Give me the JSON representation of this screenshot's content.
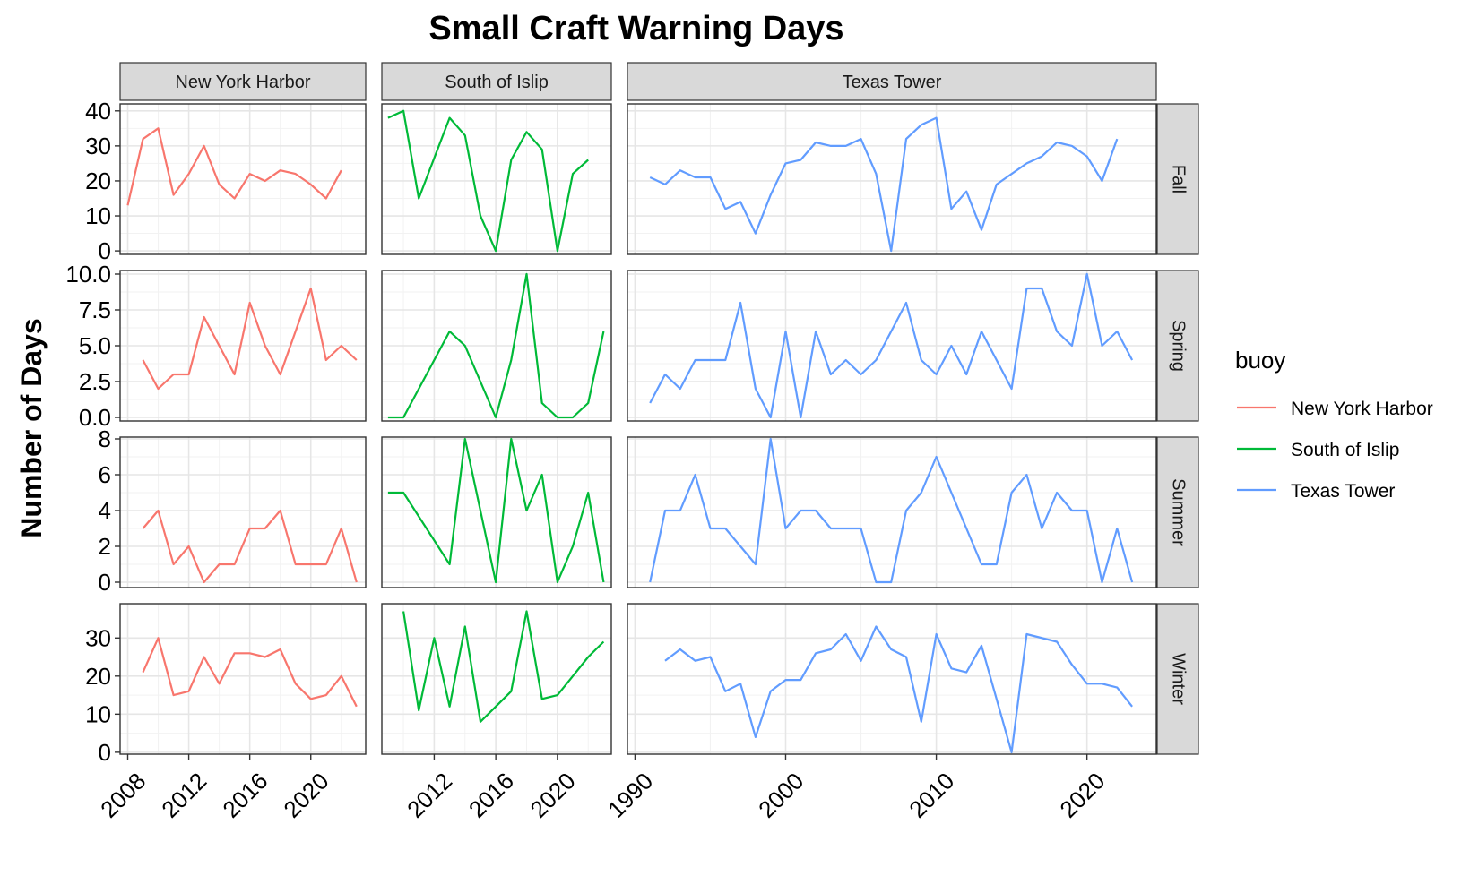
{
  "chart_data": {
    "type": "line",
    "title": "Small Craft Warning Days",
    "ylabel": "Number of Days",
    "xlabel": "",
    "legend": {
      "title": "buoy",
      "placement": "right",
      "entries": [
        "New York Harbor",
        "South of Islip",
        "Texas Tower"
      ]
    },
    "grid": true,
    "colors": {
      "New York Harbor": "#F8766D",
      "South of Islip": "#00BA38",
      "Texas Tower": "#619CFF",
      "strip_fill": "#D9D9D9",
      "grid_major": "#E6E6E6",
      "grid_minor": "#F2F2F2"
    },
    "columns": [
      {
        "name": "New York Harbor",
        "xlim": [
          2007.5,
          2023.6
        ],
        "xticks": [
          2008,
          2012,
          2016,
          2020
        ],
        "xtick_labels": [
          "2008",
          "2012",
          "2016",
          "2020"
        ]
      },
      {
        "name": "South of Islip",
        "xlim": [
          2008.6,
          2023.5
        ],
        "xticks": [
          2012,
          2016,
          2020
        ],
        "xtick_labels": [
          "2012",
          "2016",
          "2020"
        ]
      },
      {
        "name": "Texas Tower",
        "xlim": [
          1989.5,
          2024.6
        ],
        "xticks": [
          1990,
          2000,
          2010,
          2020
        ],
        "xtick_labels": [
          "1990",
          "2000",
          "2010",
          "2020"
        ]
      }
    ],
    "rows": [
      {
        "name": "Fall",
        "ylim": [
          -1,
          42
        ],
        "yticks": [
          0,
          10,
          20,
          30,
          40
        ],
        "ytick_labels": [
          "0",
          "10",
          "20",
          "30",
          "40"
        ]
      },
      {
        "name": "Spring",
        "ylim": [
          -0.25,
          10.25
        ],
        "yticks": [
          0,
          2.5,
          5,
          7.5,
          10
        ],
        "ytick_labels": [
          "0.0",
          "2.5",
          "5.0",
          "7.5",
          "10.0"
        ]
      },
      {
        "name": "Summer",
        "ylim": [
          -0.3,
          8.1
        ],
        "yticks": [
          0,
          2,
          4,
          6,
          8
        ],
        "ytick_labels": [
          "0",
          "2",
          "4",
          "6",
          "8"
        ]
      },
      {
        "name": "Winter",
        "ylim": [
          -0.5,
          39
        ],
        "yticks": [
          0,
          10,
          20,
          30
        ],
        "ytick_labels": [
          "0",
          "10",
          "20",
          "30"
        ]
      }
    ],
    "panels": [
      {
        "buoy": "New York Harbor",
        "season": "Fall",
        "x": [
          2008,
          2009,
          2010,
          2011,
          2012,
          2013,
          2014,
          2015,
          2016,
          2017,
          2018,
          2019,
          2020,
          2021,
          2022
        ],
        "y": [
          13,
          32,
          35,
          16,
          22,
          30,
          19,
          15,
          22,
          20,
          23,
          22,
          19,
          15,
          23
        ]
      },
      {
        "buoy": "South of Islip",
        "season": "Fall",
        "x": [
          2009,
          2010,
          2011,
          2013,
          2014,
          2015,
          2016,
          2017,
          2018,
          2019,
          2020,
          2021,
          2022
        ],
        "y": [
          38,
          40,
          15,
          38,
          33,
          10,
          0,
          26,
          34,
          29,
          0,
          22,
          26
        ]
      },
      {
        "buoy": "Texas Tower",
        "season": "Fall",
        "x": [
          1991,
          1992,
          1993,
          1994,
          1995,
          1996,
          1997,
          1998,
          1999,
          2000,
          2001,
          2002,
          2003,
          2004,
          2005,
          2006,
          2007,
          2008,
          2009,
          2010,
          2011,
          2012,
          2013,
          2014,
          2016,
          2017,
          2018,
          2019,
          2020,
          2021,
          2022
        ],
        "y": [
          21,
          19,
          23,
          21,
          21,
          12,
          14,
          5,
          16,
          25,
          26,
          31,
          30,
          30,
          32,
          22,
          0,
          32,
          36,
          38,
          12,
          17,
          6,
          19,
          25,
          27,
          31,
          30,
          27,
          20,
          32
        ]
      },
      {
        "buoy": "New York Harbor",
        "season": "Spring",
        "x": [
          2009,
          2010,
          2011,
          2012,
          2013,
          2015,
          2016,
          2017,
          2018,
          2020,
          2021,
          2022,
          2023
        ],
        "y": [
          4,
          2,
          3,
          3,
          7,
          3,
          8,
          5,
          3,
          9,
          4,
          5,
          4
        ]
      },
      {
        "buoy": "South of Islip",
        "season": "Spring",
        "x": [
          2009,
          2010,
          2013,
          2014,
          2016,
          2017,
          2018,
          2019,
          2020,
          2021,
          2022,
          2023
        ],
        "y": [
          0,
          0,
          6,
          5,
          0,
          4,
          10,
          1,
          0,
          0,
          1,
          6
        ]
      },
      {
        "buoy": "Texas Tower",
        "season": "Spring",
        "x": [
          1991,
          1992,
          1993,
          1994,
          1995,
          1996,
          1997,
          1998,
          1999,
          2000,
          2001,
          2002,
          2003,
          2004,
          2005,
          2006,
          2008,
          2009,
          2010,
          2011,
          2012,
          2013,
          2015,
          2016,
          2017,
          2018,
          2019,
          2020,
          2021,
          2022,
          2023
        ],
        "y": [
          1,
          3,
          2,
          4,
          4,
          4,
          8,
          2,
          0,
          6,
          0,
          6,
          3,
          4,
          3,
          4,
          8,
          4,
          3,
          5,
          3,
          6,
          2,
          9,
          9,
          6,
          5,
          10,
          5,
          6,
          4
        ]
      },
      {
        "buoy": "New York Harbor",
        "season": "Summer",
        "x": [
          2009,
          2010,
          2011,
          2012,
          2013,
          2014,
          2015,
          2016,
          2017,
          2018,
          2019,
          2020,
          2021,
          2022,
          2023
        ],
        "y": [
          3,
          4,
          1,
          2,
          0,
          1,
          1,
          3,
          3,
          4,
          1,
          1,
          1,
          3,
          0
        ]
      },
      {
        "buoy": "South of Islip",
        "season": "Summer",
        "x": [
          2009,
          2010,
          2013,
          2014,
          2016,
          2017,
          2018,
          2019,
          2020,
          2021,
          2022,
          2023
        ],
        "y": [
          5,
          5,
          1,
          8,
          0,
          8,
          4,
          6,
          0,
          2,
          5,
          0
        ]
      },
      {
        "buoy": "Texas Tower",
        "season": "Summer",
        "x": [
          1991,
          1992,
          1993,
          1994,
          1995,
          1996,
          1998,
          1999,
          2000,
          2001,
          2002,
          2003,
          2004,
          2005,
          2006,
          2007,
          2008,
          2009,
          2010,
          2013,
          2014,
          2015,
          2016,
          2017,
          2018,
          2019,
          2020,
          2021,
          2022,
          2023
        ],
        "y": [
          0,
          4,
          4,
          6,
          3,
          3,
          1,
          8,
          3,
          4,
          4,
          3,
          3,
          3,
          0,
          0,
          4,
          5,
          7,
          1,
          1,
          5,
          6,
          3,
          5,
          4,
          4,
          0,
          3,
          0
        ]
      },
      {
        "buoy": "New York Harbor",
        "season": "Winter",
        "x": [
          2009,
          2010,
          2011,
          2012,
          2013,
          2014,
          2015,
          2016,
          2017,
          2018,
          2019,
          2020,
          2021,
          2022,
          2023
        ],
        "y": [
          21,
          30,
          15,
          16,
          25,
          18,
          26,
          26,
          25,
          27,
          18,
          14,
          15,
          20,
          12
        ]
      },
      {
        "buoy": "South of Islip",
        "season": "Winter",
        "x": [
          2010,
          2011,
          2012,
          2013,
          2014,
          2015,
          2017,
          2018,
          2019,
          2020,
          2022,
          2023
        ],
        "y": [
          37,
          11,
          30,
          12,
          33,
          8,
          16,
          37,
          14,
          15,
          25,
          29
        ]
      },
      {
        "buoy": "Texas Tower",
        "season": "Winter",
        "x": [
          1992,
          1993,
          1994,
          1995,
          1996,
          1997,
          1998,
          1999,
          2000,
          2001,
          2002,
          2003,
          2004,
          2005,
          2006,
          2007,
          2008,
          2009,
          2010,
          2011,
          2012,
          2013,
          2015,
          2016,
          2018,
          2019,
          2020,
          2021,
          2022,
          2023
        ],
        "y": [
          24,
          27,
          24,
          25,
          16,
          18,
          4,
          16,
          19,
          19,
          26,
          27,
          31,
          24,
          33,
          27,
          25,
          8,
          31,
          22,
          21,
          28,
          0,
          31,
          29,
          23,
          18,
          18,
          17,
          12
        ]
      }
    ]
  }
}
